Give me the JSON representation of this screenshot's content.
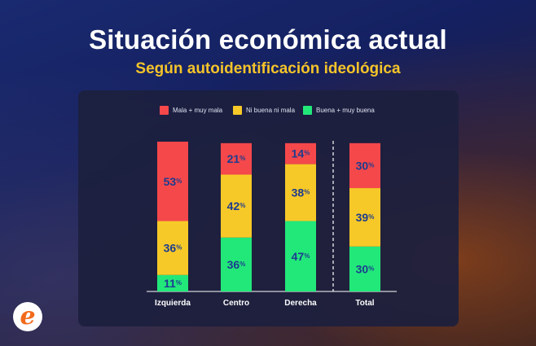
{
  "chart_data": {
    "type": "bar",
    "stacked": true,
    "title": "Situación económica actual",
    "subtitle": "Según autoidentificación ideológica",
    "categories": [
      "Izquierda",
      "Centro",
      "Derecha",
      "Total"
    ],
    "series": [
      {
        "name": "Buena + muy buena",
        "color": "#22e87a",
        "values": [
          11,
          36,
          47,
          30
        ]
      },
      {
        "name": "Ni buena ni mala",
        "color": "#f7c928",
        "values": [
          36,
          42,
          38,
          39
        ]
      },
      {
        "name": "Mala + muy mala",
        "color": "#f4484b",
        "values": [
          53,
          21,
          14,
          30
        ]
      }
    ],
    "legend_order": [
      2,
      1,
      0
    ],
    "value_suffix": "%",
    "label_color": "#1d3c8f",
    "ylim": [
      0,
      100
    ]
  },
  "logo_text": "e"
}
